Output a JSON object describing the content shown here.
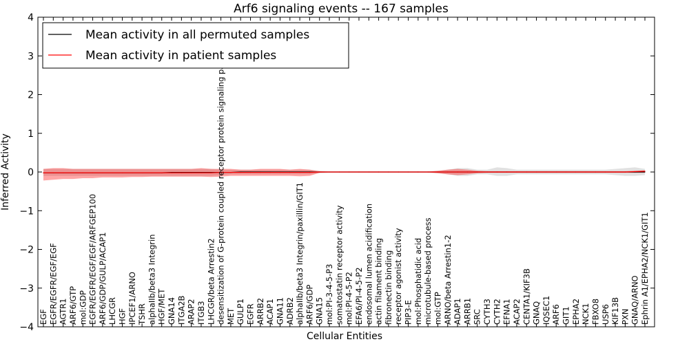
{
  "chart_data": {
    "type": "line",
    "title": "Arf6 signaling events -- 167 samples",
    "xlabel": "Cellular Entities",
    "ylabel": "Inferred Activity",
    "ylim": [
      -4,
      4
    ],
    "yticks": [
      -4,
      -3,
      -2,
      -1,
      0,
      1,
      2,
      3,
      4
    ],
    "ytick_labels": [
      "−4",
      "−3",
      "−2",
      "−1",
      "0",
      "1",
      "2",
      "3",
      "4"
    ],
    "legend_position": "top-left",
    "categories": [
      "EGF",
      "EGFR/EGFR/EGF/EGF",
      "AGTR1",
      "ARF6/GTP",
      "mol:GDP",
      "EGFR/EGFR/EGF/EGF/ARFGEP100",
      "ARF6/GDP/GULP/ACAP1",
      "LHCGR",
      "HGF",
      "IPCEF1/ARNO",
      "TSHR",
      "alphaIIb/beta3 Integrin",
      "HGF/MET",
      "GNA14",
      "ITGA2B",
      "ARAP2",
      "ITGB3",
      "LHCGR/beta Arrestin2",
      "desensitization of G-protein coupled receptor protein signaling pathway",
      "MET",
      "GULP1",
      "EGFR",
      "ARRB2",
      "ACAP1",
      "GNA11",
      "ADRB2",
      "alphaIIb/beta3 Integrin/paxillin/GIT1",
      "ARF6/GDP",
      "GNA15",
      "mol:PI-3-4-5-P3",
      "somatostatin receptor activity",
      "mol:PI-4-5-P2",
      "EFA6/PI-4-5-P2",
      "endosomal lumen acidification",
      "actin filament binding",
      "fibronectin binding",
      "receptor agonist activity",
      "PIP3-E",
      "mol:Phosphatidic acid",
      "microtubule-based process",
      "mol:GTP",
      "ARNO/beta Arrestin1-2",
      "ADAP1",
      "ARRB1",
      "SRC",
      "CYTH3",
      "CYTH2",
      "EFNA1",
      "ACAP2",
      "CENTA1/KIF3B",
      "GNAQ",
      "IQSEC1",
      "ARF6",
      "GIT1",
      "EPHA2",
      "NCK1",
      "FBXO8",
      "USP6",
      "KIF13B",
      "PXN",
      "GNAQ/ARNO",
      "Ephrin A1/EPHA2/NCK1/GIT1"
    ],
    "series": [
      {
        "name": "Mean activity in all permuted samples",
        "color": "#000000",
        "values": [
          -0.02,
          -0.02,
          -0.02,
          -0.02,
          -0.02,
          -0.02,
          -0.02,
          -0.02,
          -0.02,
          -0.02,
          -0.02,
          -0.02,
          -0.02,
          -0.01,
          -0.01,
          -0.01,
          -0.01,
          -0.01,
          -0.01,
          -0.01,
          0.0,
          0.0,
          0.0,
          0.0,
          0.0,
          0.0,
          0.0,
          0.0,
          0.0,
          0.0,
          0.0,
          0.0,
          0.0,
          0.0,
          0.0,
          0.0,
          0.0,
          0.0,
          0.0,
          0.0,
          0.0,
          0.0,
          0.0,
          0.0,
          0.0,
          0.0,
          0.0,
          0.0,
          0.0,
          0.0,
          0.0,
          0.0,
          0.0,
          0.0,
          0.0,
          0.0,
          0.0,
          0.0,
          0.0,
          0.0,
          0.0,
          0.0
        ],
        "band_low": [
          -0.1,
          -0.1,
          -0.1,
          -0.1,
          -0.1,
          -0.1,
          -0.1,
          -0.1,
          -0.1,
          -0.1,
          -0.1,
          -0.1,
          -0.1,
          -0.1,
          -0.1,
          -0.1,
          -0.1,
          -0.1,
          -0.08,
          -0.06,
          -0.06,
          -0.06,
          -0.06,
          -0.06,
          -0.06,
          -0.06,
          -0.06,
          -0.06,
          -0.03,
          -0.02,
          -0.02,
          -0.02,
          -0.02,
          -0.02,
          -0.02,
          -0.02,
          -0.02,
          -0.02,
          -0.02,
          -0.02,
          -0.03,
          -0.06,
          -0.1,
          -0.1,
          -0.06,
          -0.06,
          -0.1,
          -0.1,
          -0.06,
          -0.06,
          -0.06,
          -0.06,
          -0.06,
          -0.06,
          -0.06,
          -0.06,
          -0.06,
          -0.06,
          -0.08,
          -0.1,
          -0.1,
          -0.08
        ],
        "band_high": [
          0.08,
          0.08,
          0.08,
          0.08,
          0.08,
          0.08,
          0.08,
          0.08,
          0.08,
          0.08,
          0.08,
          0.08,
          0.08,
          0.08,
          0.08,
          0.08,
          0.08,
          0.08,
          0.06,
          0.06,
          0.06,
          0.06,
          0.06,
          0.06,
          0.06,
          0.06,
          0.06,
          0.06,
          0.03,
          0.02,
          0.02,
          0.02,
          0.02,
          0.02,
          0.02,
          0.02,
          0.02,
          0.02,
          0.02,
          0.02,
          0.03,
          0.06,
          0.1,
          0.1,
          0.06,
          0.06,
          0.12,
          0.1,
          0.06,
          0.06,
          0.06,
          0.06,
          0.06,
          0.06,
          0.06,
          0.06,
          0.06,
          0.06,
          0.08,
          0.1,
          0.12,
          0.08
        ]
      },
      {
        "name": "Mean activity in patient samples",
        "color": "#ff0000",
        "values": [
          -0.02,
          -0.02,
          -0.02,
          -0.02,
          -0.02,
          -0.02,
          -0.02,
          -0.02,
          -0.02,
          -0.02,
          -0.02,
          -0.02,
          -0.02,
          -0.02,
          -0.02,
          -0.02,
          -0.02,
          -0.02,
          -0.01,
          -0.01,
          -0.01,
          -0.01,
          -0.01,
          -0.01,
          -0.01,
          -0.01,
          -0.01,
          -0.01,
          0.0,
          0.0,
          0.0,
          0.0,
          0.0,
          0.0,
          0.0,
          0.0,
          0.0,
          0.0,
          0.0,
          0.0,
          0.0,
          0.0,
          0.0,
          0.0,
          0.0,
          0.0,
          0.0,
          0.0,
          0.0,
          0.0,
          0.0,
          0.0,
          0.0,
          0.0,
          0.0,
          0.0,
          0.0,
          0.0,
          0.0,
          0.0,
          0.01,
          0.02
        ],
        "band_low": [
          -0.22,
          -0.2,
          -0.18,
          -0.18,
          -0.16,
          -0.16,
          -0.14,
          -0.14,
          -0.14,
          -0.13,
          -0.13,
          -0.12,
          -0.12,
          -0.12,
          -0.12,
          -0.12,
          -0.12,
          -0.13,
          -0.12,
          -0.1,
          -0.1,
          -0.1,
          -0.1,
          -0.1,
          -0.1,
          -0.1,
          -0.11,
          -0.1,
          -0.02,
          -0.01,
          -0.01,
          -0.01,
          -0.01,
          -0.01,
          -0.01,
          -0.01,
          -0.01,
          -0.01,
          -0.01,
          -0.01,
          -0.03,
          -0.06,
          -0.08,
          -0.06,
          -0.03,
          -0.02,
          -0.02,
          -0.02,
          -0.02,
          -0.02,
          -0.02,
          -0.02,
          -0.02,
          -0.02,
          -0.02,
          -0.02,
          -0.02,
          -0.02,
          -0.02,
          -0.02,
          -0.02,
          -0.02
        ],
        "band_high": [
          0.08,
          0.1,
          0.1,
          0.08,
          0.08,
          0.08,
          0.08,
          0.08,
          0.08,
          0.08,
          0.08,
          0.08,
          0.08,
          0.08,
          0.08,
          0.08,
          0.1,
          0.08,
          0.08,
          0.08,
          0.06,
          0.06,
          0.08,
          0.08,
          0.08,
          0.06,
          0.08,
          0.06,
          0.02,
          0.01,
          0.01,
          0.01,
          0.01,
          0.01,
          0.01,
          0.01,
          0.01,
          0.01,
          0.01,
          0.01,
          0.03,
          0.06,
          0.08,
          0.06,
          0.03,
          0.02,
          0.02,
          0.02,
          0.02,
          0.02,
          0.02,
          0.02,
          0.02,
          0.02,
          0.02,
          0.02,
          0.02,
          0.02,
          0.02,
          0.02,
          0.03,
          0.04
        ]
      }
    ]
  },
  "colors": {
    "patient_band": "#ff0000",
    "permuted_band": "#aaaaaa",
    "axes": "#000000"
  }
}
